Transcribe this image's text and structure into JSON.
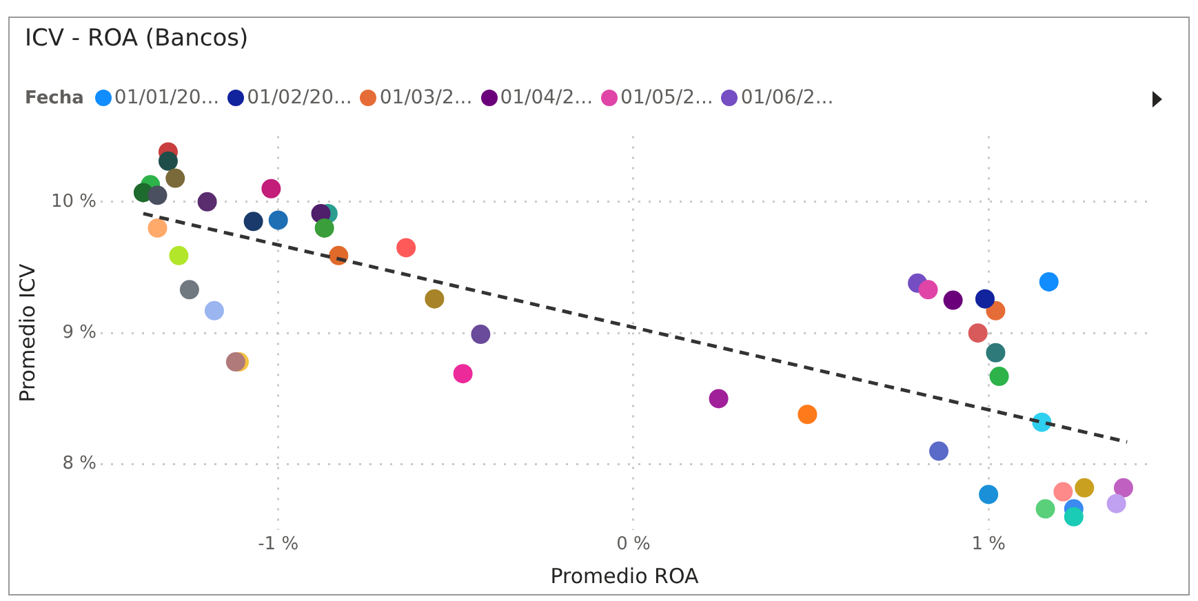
{
  "chart_data": {
    "type": "scatter",
    "title": "ICV - ROA (Bancos)",
    "xlabel": "Promedio ROA",
    "ylabel": "Promedio ICV",
    "legend_title": "Fecha",
    "legend": "top left",
    "grid": true,
    "marker": "circle",
    "xlim": [
      -1.5,
      1.45
    ],
    "xticks": [
      {
        "value": -1,
        "label": "-1 %"
      },
      {
        "value": 0,
        "label": "0 %"
      },
      {
        "value": 1,
        "label": "1 %"
      }
    ],
    "ylim": [
      7.5,
      10.5
    ],
    "yticks": [
      {
        "value": 8,
        "label": "8 %"
      },
      {
        "value": 9,
        "label": "9 %"
      },
      {
        "value": 10,
        "label": "10 %"
      }
    ],
    "series": [
      {
        "name": "01/01/20...",
        "color": "#118dff",
        "x": [
          1.17
        ],
        "values": [
          9.39
        ]
      },
      {
        "name": "01/02/20...",
        "color": "#12239e",
        "x": [
          0.99
        ],
        "values": [
          9.26
        ]
      },
      {
        "name": "01/03/2...",
        "color": "#e66c37",
        "x": [
          1.02
        ],
        "values": [
          9.17
        ]
      },
      {
        "name": "01/04/2...",
        "color": "#6b007b",
        "x": [
          0.9
        ],
        "values": [
          9.25
        ]
      },
      {
        "name": "01/05/2...",
        "color": "#e044a7",
        "x": [
          0.83
        ],
        "values": [
          9.33
        ]
      },
      {
        "name": "01/06/2...",
        "color": "#744ec2",
        "x": [
          0.8
        ],
        "values": [
          9.38
        ]
      },
      {
        "x": [
          -1.31,
          -1.31,
          -1.29,
          -1.36,
          -1.38,
          -1.34,
          -1.2,
          -1.02,
          -1.07,
          -1.0,
          -0.86,
          -0.88,
          -0.87,
          -0.83,
          -1.34,
          -1.28,
          -1.25,
          -1.18,
          -1.11,
          -1.12,
          -0.64,
          -0.56,
          -0.43,
          -0.48,
          0.24,
          0.49,
          0.97,
          1.02,
          1.03,
          1.15,
          0.86,
          1.0,
          1.21,
          1.27,
          1.16,
          1.24,
          1.24,
          1.38,
          1.36
        ],
        "values": [
          10.38,
          10.31,
          10.18,
          10.13,
          10.07,
          10.05,
          10.0,
          10.1,
          9.85,
          9.86,
          9.91,
          9.91,
          9.8,
          9.59,
          9.8,
          9.59,
          9.33,
          9.17,
          8.78,
          8.78,
          9.65,
          9.26,
          8.99,
          8.69,
          8.5,
          8.38,
          9.0,
          8.85,
          8.67,
          8.32,
          8.1,
          7.77,
          7.79,
          7.82,
          7.66,
          7.66,
          7.6,
          7.82,
          7.7
        ],
        "colors": [
          "#c83d3d",
          "#1f4e4a",
          "#7a6a3a",
          "#2db34a",
          "#1e6b2e",
          "#4a5060",
          "#5a2d6e",
          "#c21e7a",
          "#1a3a6b",
          "#1f6fb5",
          "#2a9d8f",
          "#4f1f6b",
          "#3a9e3a",
          "#e06a2a",
          "#ffa96b",
          "#b2e62a",
          "#707880",
          "#9ab5f0",
          "#f5c242",
          "#b07a7a",
          "#ff5a5a",
          "#a88328",
          "#6a4a9a",
          "#ec2a9a",
          "#a0209a",
          "#ff7a1a",
          "#d95a5a",
          "#2e7a7a",
          "#2db34a",
          "#2ed0f0",
          "#5a6ac8",
          "#1a90d8",
          "#ff8a8a",
          "#c9a020",
          "#5ad07a",
          "#3a8af0",
          "#1acbb5",
          "#c060c0",
          "#c0a0f0"
        ]
      },
      {
        "type": "line",
        "color": "#333333",
        "line_style": "dashed",
        "marker": "none",
        "x": [
          -1.38,
          1.39
        ],
        "values": [
          9.91,
          8.17
        ]
      }
    ]
  }
}
